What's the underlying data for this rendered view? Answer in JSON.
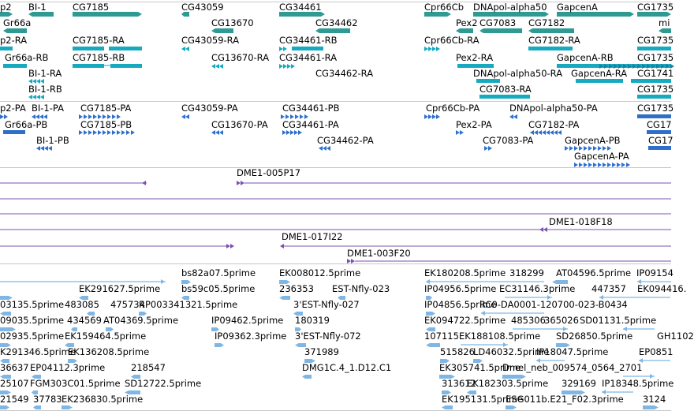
{
  "colors": {
    "gene": "#2e9a93",
    "transcript_rna": "#17a9bf",
    "transcript_protein": "#2f6fcc",
    "clone": "#7b52b0",
    "est": "#7fb6e3",
    "separator": "#c8c8c8"
  },
  "tracks": {
    "genes": {
      "labels": [
        "p2",
        "BI-1",
        "CG7185",
        "CG43059",
        "CG34461",
        "Cpr66Cb",
        "DNApol-alpha50",
        "GapcenA",
        "CG1735",
        "Gr66a",
        "CG13670",
        "CG34462",
        "Pex2",
        "CG7083",
        "CG7182",
        "mi"
      ]
    },
    "rna": {
      "labels": [
        "p2-RA",
        "CG7185-RA",
        "CG43059-RA",
        "CG34461-RB",
        "Cpr66Cb-RA",
        "CG7182-RA",
        "CG1735",
        "Gr66a-RB",
        "CG7185-RB",
        "CG13670-RA",
        "CG34461-RA",
        "Pex2-RA",
        "GapcenA-RB",
        "CG1735",
        "BI-1-RA",
        "CG34462-RA",
        "DNApol-alpha50-RA",
        "GapcenA-RA",
        "CG1741",
        "BI-1-RB",
        "CG7083-RA",
        "CG1735"
      ]
    },
    "proteins": {
      "labels": [
        "p2-PA",
        "BI-1-PA",
        "CG7185-PA",
        "CG43059-PA",
        "CG34461-PB",
        "Cpr66Cb-PA",
        "DNApol-alpha50-PA",
        "CG1735",
        "Gr66a-PB",
        "CG7185-PB",
        "CG13670-PA",
        "CG34461-PA",
        "Pex2-PA",
        "CG7182-PA",
        "CG17",
        "BI-1-PB",
        "CG34462-PA",
        "CG7083-PA",
        "GapcenA-PB",
        "CG17",
        "GapcenA-PA"
      ]
    },
    "clones": {
      "labels": [
        "DME1-005P17",
        "DME1-018F18",
        "DME1-017I22",
        "DME1-003F20"
      ]
    },
    "ests": {
      "labels": [
        "bs82a07.5prime",
        "EK008012.5prime",
        "EK180208.5prime",
        "318299",
        "AT04596.5prime",
        "IP09154",
        "EK291627.5prime",
        "bs59c05.5prime",
        "236353",
        "EST-Nfly-023",
        "IP04956.5prime",
        "EC31146.3prime",
        "447357",
        "EK094416.",
        "03135.5prime",
        "483085",
        "475734",
        "RP003341321.5prime",
        "3'EST-Nfly-027",
        "IP04856.5prime",
        "RC0-DA0001-120700-023-B0434",
        "09035.5prime",
        "434569",
        "AT04369.5prime",
        "IP09462.5prime",
        "180319",
        "EK094722.5prime",
        "485306",
        "365026",
        "SD01131.5prime",
        "02935.5prime",
        "EK159464.5prime",
        "IP09362.3prime",
        "3'EST-Nfly-072",
        "107115",
        "EK188108.5prime",
        "SD26850.5prime",
        "GH1102",
        "K291346.5prime",
        "EK136208.5prime",
        "371989",
        "515826",
        "LD46032.5prime",
        "IP18047.5prime",
        "EP0851",
        "36637",
        "EP04112.3prime",
        "218547",
        "DMG1C.4_1.D12.C1",
        "EK305741.5prime",
        "Dmel_neb_009574_0564_2701",
        "25107",
        "FGM303C01.5prime",
        "SD12722.5prime",
        "313612",
        "EK182303.5prime",
        "329169",
        "IP18348.5prime",
        "21549",
        "37783",
        "EK236830.5prime",
        "EK195131.5prime",
        "ESG011b.E21_F02.3prime",
        "3124"
      ]
    }
  }
}
